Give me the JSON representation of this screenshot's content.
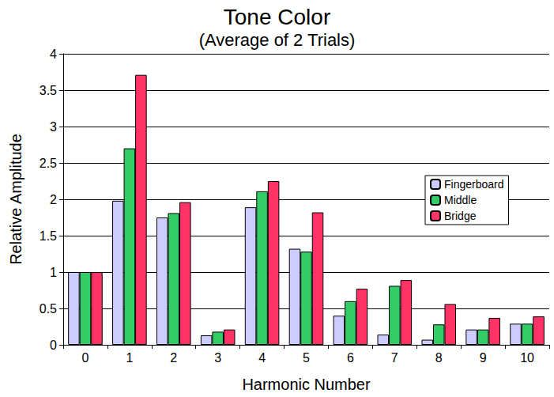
{
  "chart_data": {
    "type": "bar",
    "title": "Tone Color",
    "subtitle": "(Average of 2 Trials)",
    "x_label": "Harmonic Number",
    "y_label": "Relative Amplitude",
    "categories": [
      "0",
      "1",
      "2",
      "3",
      "4",
      "5",
      "6",
      "7",
      "8",
      "9",
      "10"
    ],
    "series": [
      {
        "name": "Fingerboard",
        "color": "#ccccff",
        "values": [
          1,
          1.98,
          1.75,
          0.13,
          1.89,
          1.32,
          0.4,
          0.14,
          0.07,
          0.21,
          0.29
        ]
      },
      {
        "name": "Middle",
        "color": "#33cc66",
        "values": [
          1,
          2.7,
          1.81,
          0.18,
          2.11,
          1.28,
          0.6,
          0.81,
          0.28,
          0.21,
          0.29
        ]
      },
      {
        "name": "Bridge",
        "color": "#ff3366",
        "values": [
          1,
          3.71,
          1.96,
          0.21,
          2.25,
          1.82,
          0.77,
          0.89,
          0.56,
          0.37,
          0.39
        ]
      }
    ],
    "ylim": [
      0,
      4
    ],
    "yticks": [
      0,
      0.5,
      1,
      1.5,
      2,
      2.5,
      3,
      3.5,
      4
    ],
    "grid": true,
    "legend": "right"
  }
}
